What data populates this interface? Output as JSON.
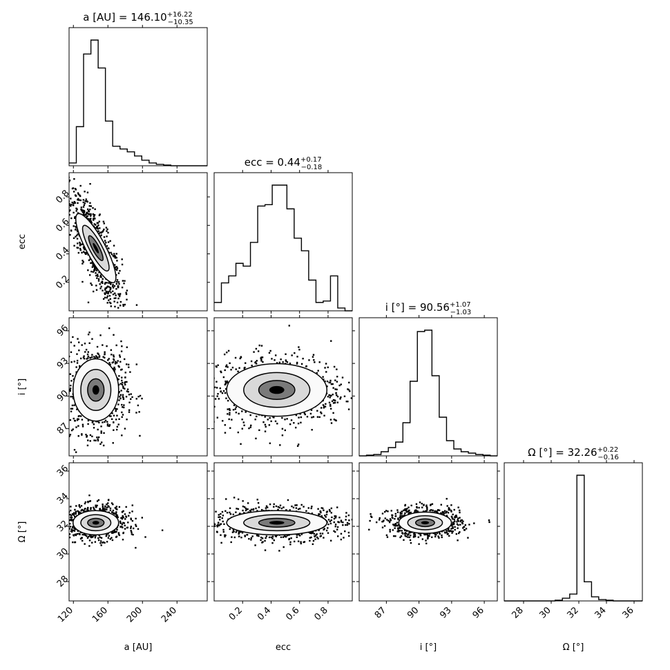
{
  "chart_data": {
    "type": "corner",
    "parameters": [
      "a [AU]",
      "ecc",
      "i [°]",
      "Ω [°]"
    ],
    "titles": [
      {
        "text": "a [AU] = 146.10",
        "sup": "+16.22",
        "sub": "−10.35"
      },
      {
        "text": "ecc = 0.44",
        "sup": "+0.17",
        "sub": "−0.18"
      },
      {
        "text": "i [°] = 90.56",
        "sup": "+1.07",
        "sub": "−1.03"
      },
      {
        "text": "Ω [°] = 32.26",
        "sup": "+0.22",
        "sub": "−0.16"
      }
    ],
    "xlabels": [
      "a [AU]",
      "ecc",
      "i [°]",
      "Ω [°]"
    ],
    "ylabels": [
      "ecc",
      "i [°]",
      "Ω [°]"
    ],
    "ranges": [
      [
        115,
        275
      ],
      [
        0.0,
        0.97
      ],
      [
        84.5,
        97.2
      ],
      [
        26.6,
        36.6
      ]
    ],
    "ticks": {
      "a": [
        120,
        160,
        200,
        240
      ],
      "ecc": [
        0.2,
        0.4,
        0.6,
        0.8
      ],
      "i": [
        87,
        90,
        93,
        96
      ],
      "omega": [
        28,
        30,
        32,
        34,
        36
      ],
      "omega_x": [
        28,
        30,
        32,
        34,
        36
      ]
    },
    "histograms": [
      {
        "param": "a [AU]",
        "bin_edges": [
          115,
          123.4,
          131.8,
          140.3,
          148.7,
          157.1,
          165.5,
          174,
          182.4,
          190.8,
          199.2,
          207.7,
          216.1,
          224.5,
          232.9,
          241.3,
          249.8,
          258.2,
          266.6,
          275
        ],
        "counts": [
          0.02,
          0.28,
          0.8,
          0.9,
          0.7,
          0.32,
          0.14,
          0.12,
          0.1,
          0.07,
          0.04,
          0.02,
          0.01,
          0.005,
          0,
          0,
          0,
          0,
          0
        ]
      },
      {
        "param": "ecc",
        "bin_edges": [
          0.0,
          0.051,
          0.102,
          0.153,
          0.204,
          0.255,
          0.306,
          0.357,
          0.408,
          0.459,
          0.511,
          0.562,
          0.613,
          0.664,
          0.715,
          0.766,
          0.817,
          0.868,
          0.919,
          0.97
        ],
        "counts": [
          0.06,
          0.2,
          0.25,
          0.34,
          0.32,
          0.49,
          0.75,
          0.76,
          0.9,
          0.9,
          0.73,
          0.52,
          0.43,
          0.22,
          0.06,
          0.07,
          0.25,
          0.02,
          0.0
        ]
      },
      {
        "param": "i [°]",
        "bin_edges": [
          84.5,
          85.17,
          85.84,
          86.51,
          87.18,
          87.85,
          88.52,
          89.18,
          89.85,
          90.52,
          91.19,
          91.86,
          92.53,
          93.2,
          93.87,
          94.54,
          95.21,
          95.88,
          96.55,
          97.2
        ],
        "counts": [
          0.0,
          0.005,
          0.01,
          0.03,
          0.06,
          0.1,
          0.24,
          0.54,
          0.9,
          0.91,
          0.58,
          0.28,
          0.11,
          0.05,
          0.03,
          0.02,
          0.01,
          0.005,
          0.0
        ]
      },
      {
        "param": "Ω [°]",
        "bin_edges": [
          26.6,
          27.13,
          27.65,
          28.18,
          28.71,
          29.23,
          29.76,
          30.28,
          30.81,
          31.34,
          31.86,
          32.39,
          32.92,
          33.44,
          33.97,
          34.49,
          35.02,
          35.55,
          36.07,
          36.6
        ],
        "counts": [
          0.0,
          0.0,
          0.0,
          0.0,
          0.0,
          0.0,
          0.0,
          0.005,
          0.02,
          0.05,
          0.92,
          0.14,
          0.03,
          0.01,
          0.005,
          0.0,
          0.0,
          0.0,
          0.0
        ]
      }
    ],
    "joint_2d": [
      {
        "x": "a [AU]",
        "y": "ecc",
        "mean": [
          146,
          0.44
        ],
        "sd": [
          10,
          0.13
        ],
        "corr": -0.8
      },
      {
        "x": "a [AU]",
        "y": "i [°]",
        "mean": [
          146,
          90.56
        ],
        "sd": [
          12,
          1.3
        ],
        "corr": 0.0
      },
      {
        "x": "ecc",
        "y": "i [°]",
        "mean": [
          0.44,
          90.56
        ],
        "sd": [
          0.16,
          1.1
        ],
        "corr": 0.0
      },
      {
        "x": "a [AU]",
        "y": "Ω [°]",
        "mean": [
          146,
          32.26
        ],
        "sd": [
          12,
          0.4
        ],
        "corr": 0.0
      },
      {
        "x": "ecc",
        "y": "Ω [°]",
        "mean": [
          0.44,
          32.26
        ],
        "sd": [
          0.16,
          0.4
        ],
        "corr": 0.0
      },
      {
        "x": "i [°]",
        "y": "Ω [°]",
        "mean": [
          90.56,
          32.26
        ],
        "sd": [
          1.1,
          0.35
        ],
        "corr": 0.0
      }
    ]
  }
}
